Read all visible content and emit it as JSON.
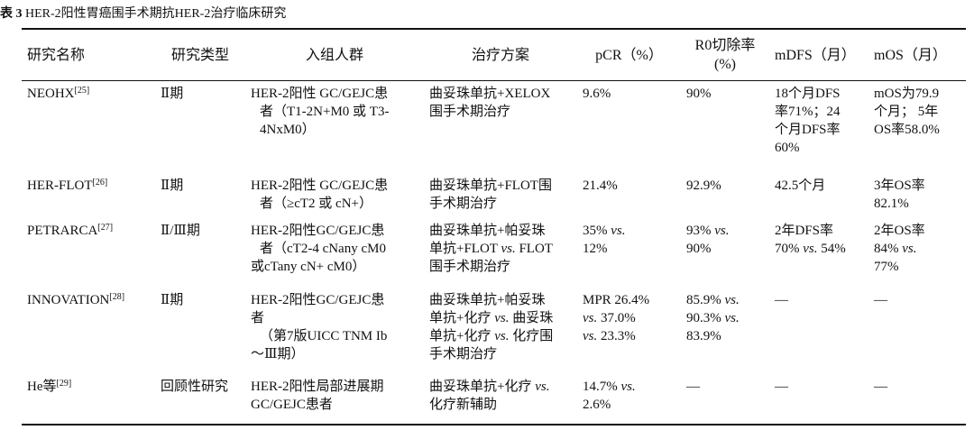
{
  "caption": {
    "label": "表 3",
    "title": "HER-2阳性胃癌围手术期抗HER-2治疗临床研究"
  },
  "headers": {
    "name": "研究名称",
    "type": "研究类型",
    "population": "入组人群",
    "regimen": "治疗方案",
    "pcr": "pCR（%）",
    "r0_line1": "R0切除率",
    "r0_line2": "(%)",
    "mdfs": "mDFS（月）",
    "mos": "mOS（月）"
  },
  "rows": [
    {
      "name": "NEOHX",
      "ref": "[25]",
      "type": "Ⅱ期",
      "population": [
        "HER-2阳性 GC/GEJC患",
        "者（T1-2N+M0 或 T3-",
        "4NxM0）"
      ],
      "regimen": [
        "曲妥珠单抗+XELOX",
        "围手术期治疗"
      ],
      "pcr": [
        "9.6%"
      ],
      "r0": [
        "90%"
      ],
      "mdfs": [
        "18个月DFS",
        "率71%；24",
        "个月DFS率",
        "60%"
      ],
      "mos": [
        "mOS为79.9",
        "个月； 5年",
        "OS率58.0%"
      ]
    },
    {
      "name": "HER-FLOT",
      "ref": "[26]",
      "type": "Ⅱ期",
      "population": [
        "HER-2阳性 GC/GEJC患",
        "者（≥cT2 或 cN+）"
      ],
      "regimen": [
        "曲妥珠单抗+FLOT围",
        "手术期治疗"
      ],
      "pcr": [
        "21.4%"
      ],
      "r0": [
        "92.9%"
      ],
      "mdfs": [
        "42.5个月"
      ],
      "mos": [
        "3年OS率",
        "82.1%"
      ]
    },
    {
      "name": "PETRARCA",
      "ref": "[27]",
      "type": "Ⅱ/Ⅲ期",
      "population": [
        "HER-2阳性GC/GEJC患",
        "者（cT2-4 cNany cM0",
        "或cTany cN+ cM0）"
      ],
      "regimen": [
        "曲妥珠单抗+帕妥珠",
        "单抗+FLOT vs. FLOT",
        "围手术期治疗"
      ],
      "pcr": [
        "35% vs.",
        "12%"
      ],
      "r0": [
        "93% vs.",
        "90%"
      ],
      "mdfs": [
        "2年DFS率",
        "70% vs. 54%"
      ],
      "mos": [
        "2年OS率",
        "84% vs.",
        "77%"
      ]
    },
    {
      "name": "INNOVATION",
      "ref": "[28]",
      "type": "Ⅱ期",
      "population": [
        "HER-2阳性GC/GEJC患",
        "者",
        "（第7版UICC TNM Ib",
        "～Ⅲ期）"
      ],
      "regimen": [
        "曲妥珠单抗+帕妥珠",
        "单抗+化疗 vs. 曲妥珠",
        "单抗+化疗 vs. 化疗围",
        "手术期治疗"
      ],
      "pcr": [
        "MPR 26.4%",
        "vs. 37.0%",
        "vs. 23.3%"
      ],
      "r0": [
        "85.9% vs.",
        "90.3% vs.",
        "83.9%"
      ],
      "mdfs": [
        "—"
      ],
      "mos": [
        "—"
      ]
    },
    {
      "name": "He等",
      "ref": "[29]",
      "type": "回顾性研究",
      "population": [
        "HER-2阳性局部进展期",
        "GC/GEJC患者"
      ],
      "regimen": [
        "曲妥珠单抗+化疗 vs.",
        "化疗新辅助"
      ],
      "pcr": [
        "14.7% vs.",
        "2.6%"
      ],
      "r0": [
        "—"
      ],
      "mdfs": [
        "—"
      ],
      "mos": [
        "—"
      ]
    }
  ]
}
